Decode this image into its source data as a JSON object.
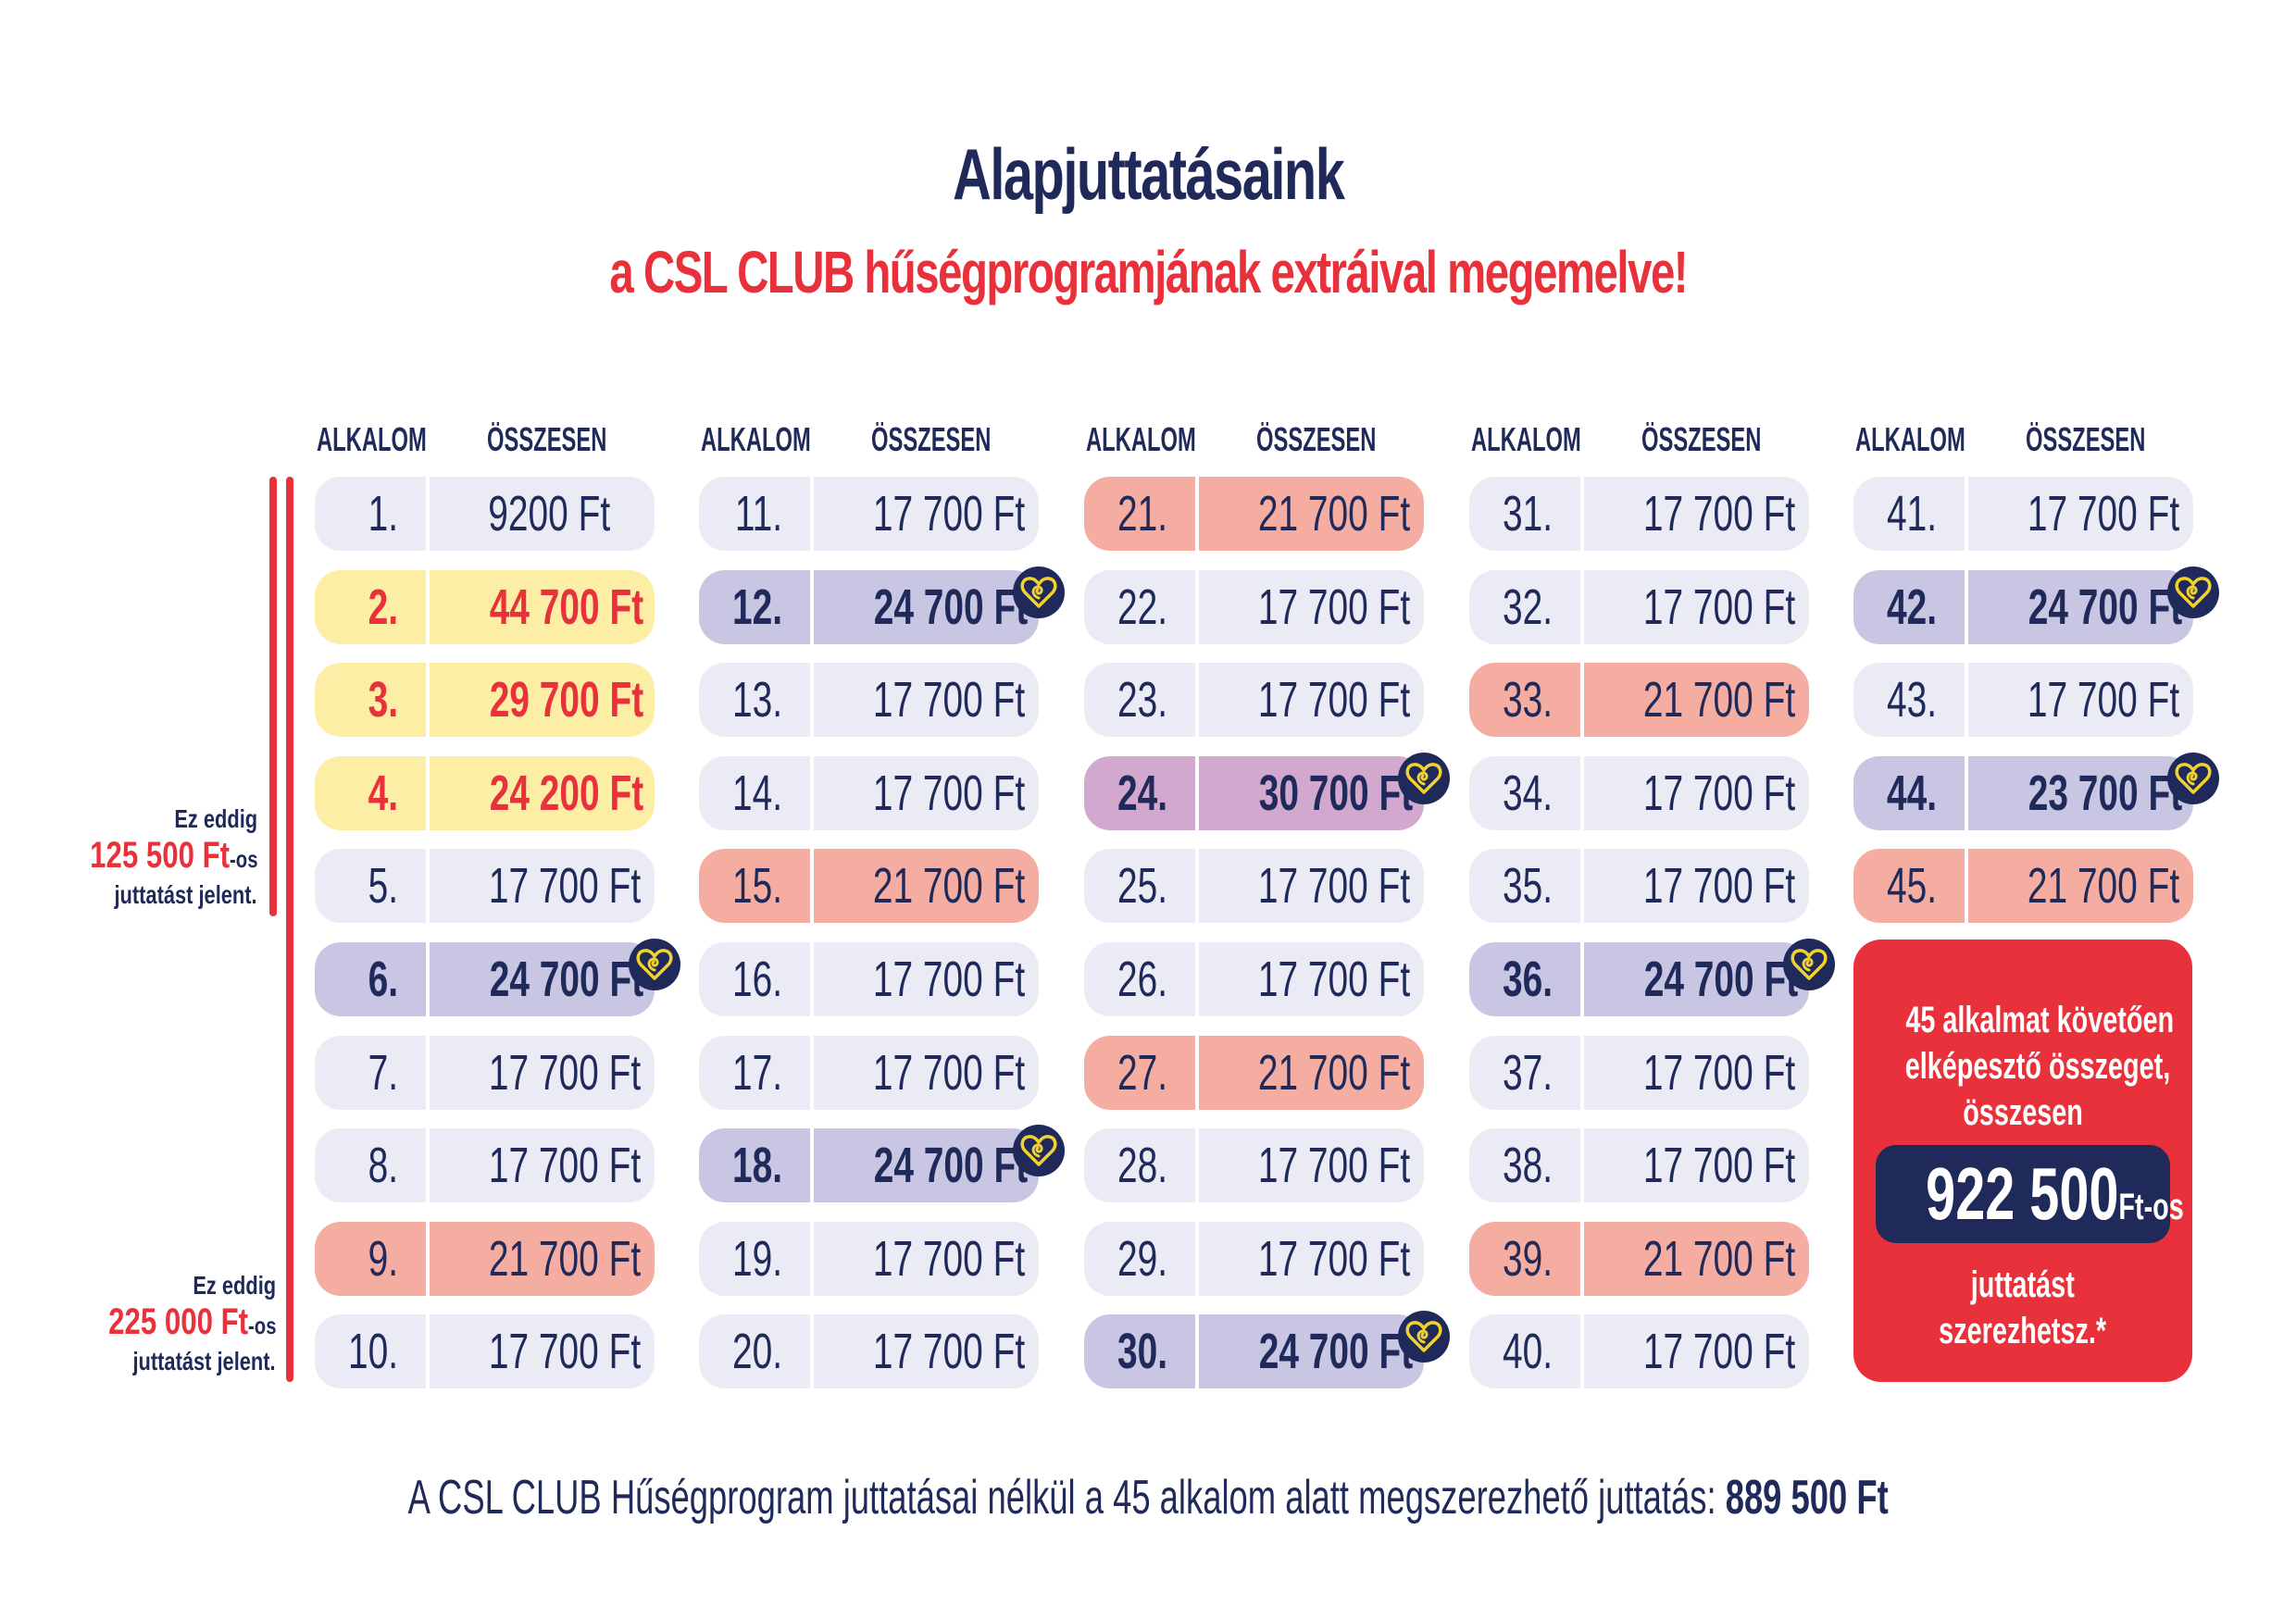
{
  "title": {
    "line1": "Alapjuttatásaink",
    "line2": "a CSL CLUB hűségprogramjának extráival megemelve!"
  },
  "colors": {
    "navy": "#1f2a5a",
    "red": "#e8313a",
    "standard_cell": "#ebebf5",
    "yellow_cell": "#fdeea6",
    "salmon_cell": "#f4ada0",
    "lavender_cell": "#c8c6e2",
    "mauve_cell": "#d3a8cf",
    "heart_gold": "#f2d22e"
  },
  "column_headers": {
    "occasion": "ALKALOM",
    "total": "ÖSSZESEN"
  },
  "columns": [
    {
      "rows": [
        {
          "num": "1.",
          "value": "9200 Ft",
          "style": "std",
          "heart": false
        },
        {
          "num": "2.",
          "value": "44 700 Ft",
          "style": "yellow",
          "heart": false
        },
        {
          "num": "3.",
          "value": "29 700 Ft",
          "style": "yellow",
          "heart": false
        },
        {
          "num": "4.",
          "value": "24 200 Ft",
          "style": "yellow",
          "heart": false
        },
        {
          "num": "5.",
          "value": "17 700 Ft",
          "style": "std",
          "heart": false
        },
        {
          "num": "6.",
          "value": "24 700 Ft",
          "style": "lavender",
          "heart": true
        },
        {
          "num": "7.",
          "value": "17 700 Ft",
          "style": "std",
          "heart": false
        },
        {
          "num": "8.",
          "value": "17 700 Ft",
          "style": "std",
          "heart": false
        },
        {
          "num": "9.",
          "value": "21 700 Ft",
          "style": "salmon",
          "heart": false
        },
        {
          "num": "10.",
          "value": "17 700 Ft",
          "style": "std",
          "heart": false
        }
      ]
    },
    {
      "rows": [
        {
          "num": "11.",
          "value": "17 700 Ft",
          "style": "std",
          "heart": false
        },
        {
          "num": "12.",
          "value": "24 700 Ft",
          "style": "lavender",
          "heart": true
        },
        {
          "num": "13.",
          "value": "17 700 Ft",
          "style": "std",
          "heart": false
        },
        {
          "num": "14.",
          "value": "17 700 Ft",
          "style": "std",
          "heart": false
        },
        {
          "num": "15.",
          "value": "21 700 Ft",
          "style": "salmon",
          "heart": false
        },
        {
          "num": "16.",
          "value": "17 700 Ft",
          "style": "std",
          "heart": false
        },
        {
          "num": "17.",
          "value": "17 700 Ft",
          "style": "std",
          "heart": false
        },
        {
          "num": "18.",
          "value": "24 700 Ft",
          "style": "lavender",
          "heart": true
        },
        {
          "num": "19.",
          "value": "17 700 Ft",
          "style": "std",
          "heart": false
        },
        {
          "num": "20.",
          "value": "17 700 Ft",
          "style": "std",
          "heart": false
        }
      ]
    },
    {
      "rows": [
        {
          "num": "21.",
          "value": "21 700 Ft",
          "style": "salmon",
          "heart": false
        },
        {
          "num": "22.",
          "value": "17 700 Ft",
          "style": "std",
          "heart": false
        },
        {
          "num": "23.",
          "value": "17 700 Ft",
          "style": "std",
          "heart": false
        },
        {
          "num": "24.",
          "value": "30 700 Ft",
          "style": "mauve",
          "heart": true
        },
        {
          "num": "25.",
          "value": "17 700 Ft",
          "style": "std",
          "heart": false
        },
        {
          "num": "26.",
          "value": "17 700 Ft",
          "style": "std",
          "heart": false
        },
        {
          "num": "27.",
          "value": "21 700 Ft",
          "style": "salmon",
          "heart": false
        },
        {
          "num": "28.",
          "value": "17 700 Ft",
          "style": "std",
          "heart": false
        },
        {
          "num": "29.",
          "value": "17 700 Ft",
          "style": "std",
          "heart": false
        },
        {
          "num": "30.",
          "value": "24 700 Ft",
          "style": "lavender",
          "heart": true
        }
      ]
    },
    {
      "rows": [
        {
          "num": "31.",
          "value": "17 700 Ft",
          "style": "std",
          "heart": false
        },
        {
          "num": "32.",
          "value": "17 700 Ft",
          "style": "std",
          "heart": false
        },
        {
          "num": "33.",
          "value": "21 700 Ft",
          "style": "salmon",
          "heart": false
        },
        {
          "num": "34.",
          "value": "17 700 Ft",
          "style": "std",
          "heart": false
        },
        {
          "num": "35.",
          "value": "17 700 Ft",
          "style": "std",
          "heart": false
        },
        {
          "num": "36.",
          "value": "24 700 Ft",
          "style": "lavender",
          "heart": true
        },
        {
          "num": "37.",
          "value": "17 700 Ft",
          "style": "std",
          "heart": false
        },
        {
          "num": "38.",
          "value": "17 700 Ft",
          "style": "std",
          "heart": false
        },
        {
          "num": "39.",
          "value": "21 700 Ft",
          "style": "salmon",
          "heart": false
        },
        {
          "num": "40.",
          "value": "17 700 Ft",
          "style": "std",
          "heart": false
        }
      ]
    },
    {
      "rows": [
        {
          "num": "41.",
          "value": "17 700 Ft",
          "style": "std",
          "heart": false
        },
        {
          "num": "42.",
          "value": "24 700 Ft",
          "style": "lavender",
          "heart": true
        },
        {
          "num": "43.",
          "value": "17 700 Ft",
          "style": "std",
          "heart": false
        },
        {
          "num": "44.",
          "value": "23 700 Ft",
          "style": "lavender",
          "heart": true
        },
        {
          "num": "45.",
          "value": "21 700 Ft",
          "style": "salmon",
          "heart": false
        }
      ]
    }
  ],
  "side_notes": [
    {
      "line1": "Ez eddig",
      "amount": "125 500 Ft",
      "suffix": "-os",
      "line3": "juttatást jelent."
    },
    {
      "line1": "Ez eddig",
      "amount": "225 000 Ft",
      "suffix": "-os",
      "line3": "juttatást jelent."
    }
  ],
  "promo": {
    "line1": "45 alkalmat követően",
    "line2": "elképesztő összeget,",
    "line3": "összesen",
    "amount": "922 500",
    "amount_suffix": "Ft-os",
    "line4": "juttatást",
    "line5": "szerezhetsz.*"
  },
  "footer": {
    "text": "A CSL CLUB Hűségprogram juttatásai nélkül a 45 alkalom alatt megszerezhető juttatás: ",
    "amount": "889 500 Ft"
  }
}
